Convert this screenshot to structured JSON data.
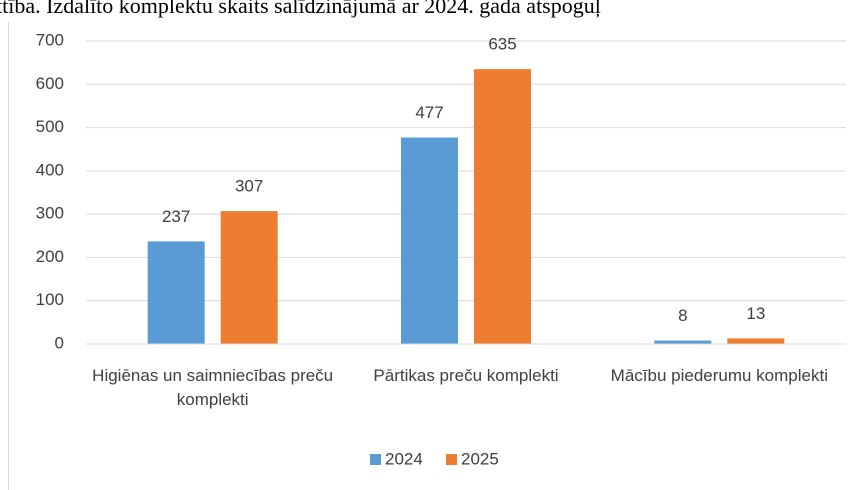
{
  "caption": "ttība. Izdalīto komplektu skaits salīdzinājumā ar 2024. gada atspoguļ",
  "chart_data": {
    "type": "bar",
    "categories": [
      "Higiēnas un saimniecības preču komplekti",
      "Pārtikas preču komplekti",
      "Mācību piederumu komplekti"
    ],
    "series": [
      {
        "name": "2024",
        "color": "#5b9bd5",
        "values": [
          237,
          477,
          8
        ]
      },
      {
        "name": "2025",
        "color": "#ed7d31",
        "values": [
          307,
          635,
          13
        ]
      }
    ],
    "ylim": [
      0,
      700
    ],
    "yticks": [
      0,
      100,
      200,
      300,
      400,
      500,
      600,
      700
    ],
    "grid": true,
    "legend": "bottom"
  }
}
